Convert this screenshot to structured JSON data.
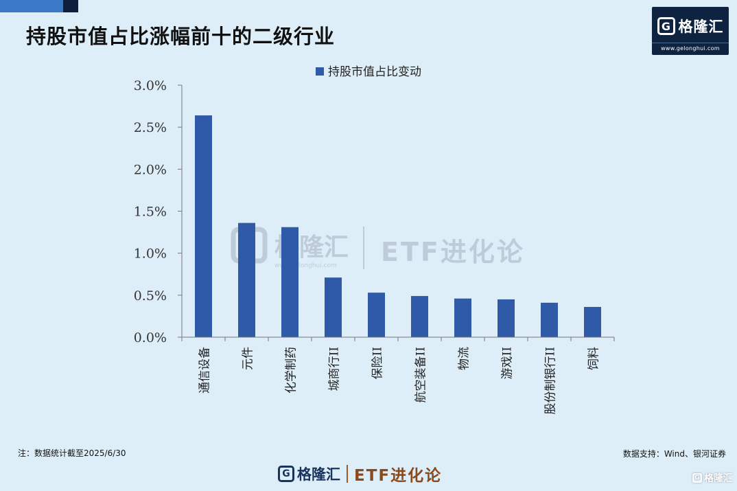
{
  "page": {
    "title": "持股市值占比涨幅前十的二级行业"
  },
  "brand": {
    "name": "格隆汇",
    "url": "www.gelonghui.com",
    "g_letter": "G"
  },
  "watermark": {
    "name": "格隆汇",
    "url": "www.gelonghui.com",
    "etf": "ETF进化论"
  },
  "chart_data": {
    "type": "bar",
    "legend": "持股市值占比变动",
    "legend_position": "top",
    "categories": [
      "通信设备",
      "元件",
      "化学制药",
      "城商行II",
      "保险II",
      "航空装备II",
      "物流",
      "游戏II",
      "股份制银行II",
      "饲料"
    ],
    "values": [
      2.64,
      1.36,
      1.31,
      0.71,
      0.53,
      0.49,
      0.46,
      0.45,
      0.41,
      0.36
    ],
    "ylim": [
      0,
      3.0
    ],
    "yticks": [
      "0.0%",
      "0.5%",
      "1.0%",
      "1.5%",
      "2.0%",
      "2.5%",
      "3.0%"
    ],
    "ytick_values": [
      0,
      0.5,
      1.0,
      1.5,
      2.0,
      2.5,
      3.0
    ],
    "grid": false,
    "colors": {
      "bar": "#2e5aa8",
      "axis": "#777777"
    }
  },
  "footer": {
    "note": "注：数据统计截至2025/6/30",
    "source": "数据支持：Wind、银河证券",
    "logo_name": "格隆汇",
    "logo_etf": "ETF进化论",
    "badge": "格隆汇"
  }
}
